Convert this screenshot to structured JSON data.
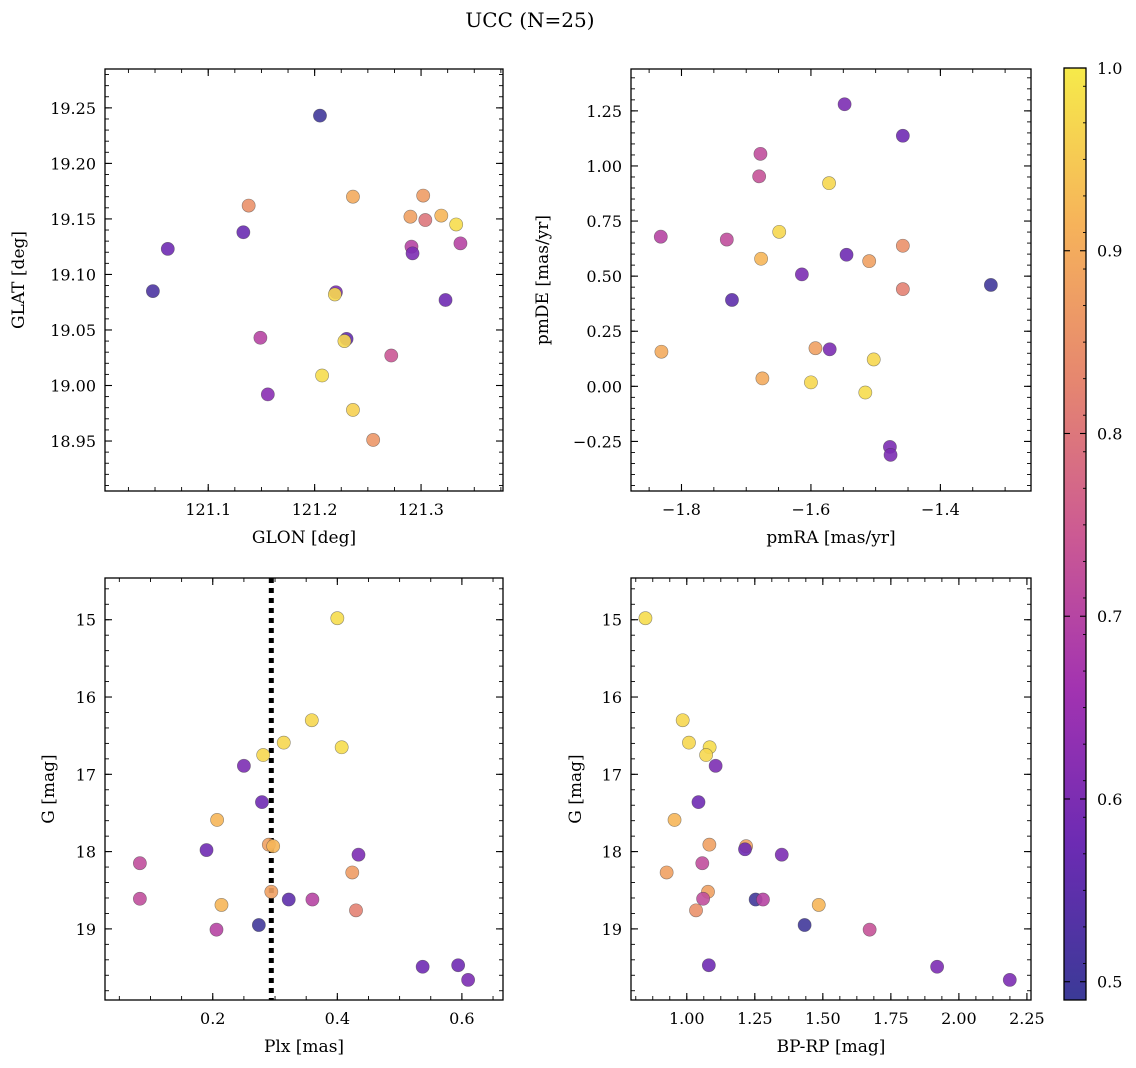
{
  "title": "UCC (N=25)",
  "colormap": {
    "name": "plasma",
    "range": [
      0.49,
      1.0
    ],
    "ticks": [
      "0.5",
      "0.6",
      "0.7",
      "0.8",
      "0.9",
      "1.0"
    ],
    "stops": [
      "#3b3a97",
      "#6c2bb3",
      "#a233b1",
      "#cc5a93",
      "#e6876f",
      "#f6b35a",
      "#f6ea4a"
    ]
  },
  "chart_data": [
    {
      "type": "scatter",
      "xlabel": "GLON [deg]",
      "ylabel": "GLAT [deg]",
      "xlim": [
        121.003,
        121.377
      ],
      "ylim": [
        18.905,
        19.285
      ],
      "xticks": [
        "121.1",
        "121.2",
        "121.3"
      ],
      "yticks": [
        "18.95",
        "19.00",
        "19.05",
        "19.10",
        "19.15",
        "19.20",
        "19.25"
      ],
      "points": [
        {
          "x": 121.205,
          "y": 19.243,
          "c": 0.5
        },
        {
          "x": 121.048,
          "y": 19.085,
          "c": 0.52
        },
        {
          "x": 121.062,
          "y": 19.123,
          "c": 0.58
        },
        {
          "x": 121.133,
          "y": 19.138,
          "c": 0.57
        },
        {
          "x": 121.138,
          "y": 19.162,
          "c": 0.85
        },
        {
          "x": 121.149,
          "y": 19.043,
          "c": 0.7
        },
        {
          "x": 121.156,
          "y": 18.992,
          "c": 0.62
        },
        {
          "x": 121.207,
          "y": 19.009,
          "c": 0.98
        },
        {
          "x": 121.22,
          "y": 19.084,
          "c": 0.6
        },
        {
          "x": 121.219,
          "y": 19.082,
          "c": 0.97
        },
        {
          "x": 121.23,
          "y": 19.042,
          "c": 0.56
        },
        {
          "x": 121.228,
          "y": 19.04,
          "c": 0.97
        },
        {
          "x": 121.236,
          "y": 19.17,
          "c": 0.9
        },
        {
          "x": 121.236,
          "y": 18.978,
          "c": 0.96
        },
        {
          "x": 121.255,
          "y": 18.951,
          "c": 0.86
        },
        {
          "x": 121.272,
          "y": 19.027,
          "c": 0.74
        },
        {
          "x": 121.29,
          "y": 19.152,
          "c": 0.88
        },
        {
          "x": 121.291,
          "y": 19.125,
          "c": 0.7
        },
        {
          "x": 121.292,
          "y": 19.119,
          "c": 0.6
        },
        {
          "x": 121.302,
          "y": 19.171,
          "c": 0.87
        },
        {
          "x": 121.304,
          "y": 19.149,
          "c": 0.8
        },
        {
          "x": 121.319,
          "y": 19.153,
          "c": 0.92
        },
        {
          "x": 121.323,
          "y": 19.077,
          "c": 0.58
        },
        {
          "x": 121.333,
          "y": 19.145,
          "c": 0.98
        },
        {
          "x": 121.337,
          "y": 19.128,
          "c": 0.7
        }
      ]
    },
    {
      "type": "scatter",
      "xlabel": "pmRA [mas/yr]",
      "ylabel": "pmDE [mas/yr]",
      "xlim": [
        -1.878,
        -1.26
      ],
      "ylim": [
        -0.475,
        1.44
      ],
      "xticks": [
        "−1.8",
        "−1.6",
        "−1.4"
      ],
      "yticks": [
        "−0.25",
        "0.00",
        "0.25",
        "0.50",
        "0.75",
        "1.00",
        "1.25"
      ],
      "points": [
        {
          "x": -1.548,
          "y": 1.28,
          "c": 0.6
        },
        {
          "x": -1.458,
          "y": 1.137,
          "c": 0.58
        },
        {
          "x": -1.678,
          "y": 1.055,
          "c": 0.72
        },
        {
          "x": -1.68,
          "y": 0.953,
          "c": 0.73
        },
        {
          "x": -1.572,
          "y": 0.922,
          "c": 0.97
        },
        {
          "x": -1.832,
          "y": 0.679,
          "c": 0.7
        },
        {
          "x": -1.73,
          "y": 0.666,
          "c": 0.72
        },
        {
          "x": -1.649,
          "y": 0.701,
          "c": 0.97
        },
        {
          "x": -1.458,
          "y": 0.638,
          "c": 0.85
        },
        {
          "x": -1.545,
          "y": 0.597,
          "c": 0.58
        },
        {
          "x": -1.51,
          "y": 0.568,
          "c": 0.88
        },
        {
          "x": -1.677,
          "y": 0.579,
          "c": 0.92
        },
        {
          "x": -1.614,
          "y": 0.508,
          "c": 0.6
        },
        {
          "x": -1.458,
          "y": 0.441,
          "c": 0.82
        },
        {
          "x": -1.322,
          "y": 0.46,
          "c": 0.5
        },
        {
          "x": -1.722,
          "y": 0.392,
          "c": 0.55
        },
        {
          "x": -1.831,
          "y": 0.157,
          "c": 0.9
        },
        {
          "x": -1.593,
          "y": 0.173,
          "c": 0.88
        },
        {
          "x": -1.571,
          "y": 0.168,
          "c": 0.6
        },
        {
          "x": -1.503,
          "y": 0.122,
          "c": 0.97
        },
        {
          "x": -1.675,
          "y": 0.036,
          "c": 0.9
        },
        {
          "x": -1.6,
          "y": 0.018,
          "c": 0.97
        },
        {
          "x": -1.516,
          "y": -0.028,
          "c": 0.98
        },
        {
          "x": -1.478,
          "y": -0.275,
          "c": 0.6
        },
        {
          "x": -1.477,
          "y": -0.311,
          "c": 0.6
        }
      ]
    },
    {
      "type": "scatter",
      "xlabel": "Plx [mas]",
      "ylabel": "G [mag]",
      "xlim": [
        0.027,
        0.666
      ],
      "ylim": [
        19.92,
        14.46
      ],
      "xticks": [
        "0.2",
        "0.4",
        "0.6"
      ],
      "yticks": [
        "15",
        "16",
        "17",
        "18",
        "19"
      ],
      "vline": 0.294,
      "points": [
        {
          "x": 0.4,
          "y": 14.98,
          "c": 0.98
        },
        {
          "x": 0.359,
          "y": 16.3,
          "c": 0.97
        },
        {
          "x": 0.314,
          "y": 16.59,
          "c": 0.97
        },
        {
          "x": 0.407,
          "y": 16.65,
          "c": 0.98
        },
        {
          "x": 0.281,
          "y": 16.75,
          "c": 0.97
        },
        {
          "x": 0.25,
          "y": 16.89,
          "c": 0.6
        },
        {
          "x": 0.279,
          "y": 17.36,
          "c": 0.58
        },
        {
          "x": 0.207,
          "y": 17.59,
          "c": 0.92
        },
        {
          "x": 0.19,
          "y": 17.98,
          "c": 0.58
        },
        {
          "x": 0.083,
          "y": 18.15,
          "c": 0.72
        },
        {
          "x": 0.29,
          "y": 17.91,
          "c": 0.88
        },
        {
          "x": 0.297,
          "y": 17.93,
          "c": 0.92
        },
        {
          "x": 0.434,
          "y": 18.04,
          "c": 0.6
        },
        {
          "x": 0.424,
          "y": 18.27,
          "c": 0.87
        },
        {
          "x": 0.083,
          "y": 18.61,
          "c": 0.72
        },
        {
          "x": 0.214,
          "y": 18.69,
          "c": 0.92
        },
        {
          "x": 0.294,
          "y": 18.52,
          "c": 0.88
        },
        {
          "x": 0.322,
          "y": 18.62,
          "c": 0.55
        },
        {
          "x": 0.36,
          "y": 18.62,
          "c": 0.7
        },
        {
          "x": 0.43,
          "y": 18.76,
          "c": 0.82
        },
        {
          "x": 0.206,
          "y": 19.01,
          "c": 0.7
        },
        {
          "x": 0.274,
          "y": 18.95,
          "c": 0.5
        },
        {
          "x": 0.537,
          "y": 19.49,
          "c": 0.58
        },
        {
          "x": 0.594,
          "y": 19.47,
          "c": 0.58
        },
        {
          "x": 0.61,
          "y": 19.66,
          "c": 0.6
        }
      ]
    },
    {
      "type": "scatter",
      "xlabel": "BP-RP [mag]",
      "ylabel": "G [mag]",
      "xlim": [
        0.795,
        2.265
      ],
      "ylim": [
        19.92,
        14.46
      ],
      "xticks": [
        "1.00",
        "1.25",
        "1.50",
        "1.75",
        "2.00",
        "2.25"
      ],
      "yticks": [
        "15",
        "16",
        "17",
        "18",
        "19"
      ],
      "points": [
        {
          "x": 0.848,
          "y": 14.98,
          "c": 0.98
        },
        {
          "x": 0.985,
          "y": 16.3,
          "c": 0.97
        },
        {
          "x": 1.008,
          "y": 16.59,
          "c": 0.97
        },
        {
          "x": 1.084,
          "y": 16.65,
          "c": 0.98
        },
        {
          "x": 1.071,
          "y": 16.75,
          "c": 0.97
        },
        {
          "x": 1.106,
          "y": 16.89,
          "c": 0.6
        },
        {
          "x": 1.043,
          "y": 17.36,
          "c": 0.58
        },
        {
          "x": 0.955,
          "y": 17.59,
          "c": 0.92
        },
        {
          "x": 1.083,
          "y": 17.91,
          "c": 0.88
        },
        {
          "x": 1.218,
          "y": 17.93,
          "c": 0.88
        },
        {
          "x": 1.214,
          "y": 17.97,
          "c": 0.58
        },
        {
          "x": 1.349,
          "y": 18.04,
          "c": 0.6
        },
        {
          "x": 1.057,
          "y": 18.15,
          "c": 0.72
        },
        {
          "x": 0.926,
          "y": 18.27,
          "c": 0.88
        },
        {
          "x": 1.078,
          "y": 18.52,
          "c": 0.88
        },
        {
          "x": 1.06,
          "y": 18.61,
          "c": 0.72
        },
        {
          "x": 1.253,
          "y": 18.62,
          "c": 0.5
        },
        {
          "x": 1.28,
          "y": 18.62,
          "c": 0.7
        },
        {
          "x": 1.485,
          "y": 18.69,
          "c": 0.92
        },
        {
          "x": 1.034,
          "y": 18.76,
          "c": 0.85
        },
        {
          "x": 1.433,
          "y": 18.95,
          "c": 0.5
        },
        {
          "x": 1.672,
          "y": 19.01,
          "c": 0.73
        },
        {
          "x": 1.081,
          "y": 19.47,
          "c": 0.58
        },
        {
          "x": 1.92,
          "y": 19.49,
          "c": 0.6
        },
        {
          "x": 2.187,
          "y": 19.66,
          "c": 0.6
        }
      ]
    }
  ]
}
